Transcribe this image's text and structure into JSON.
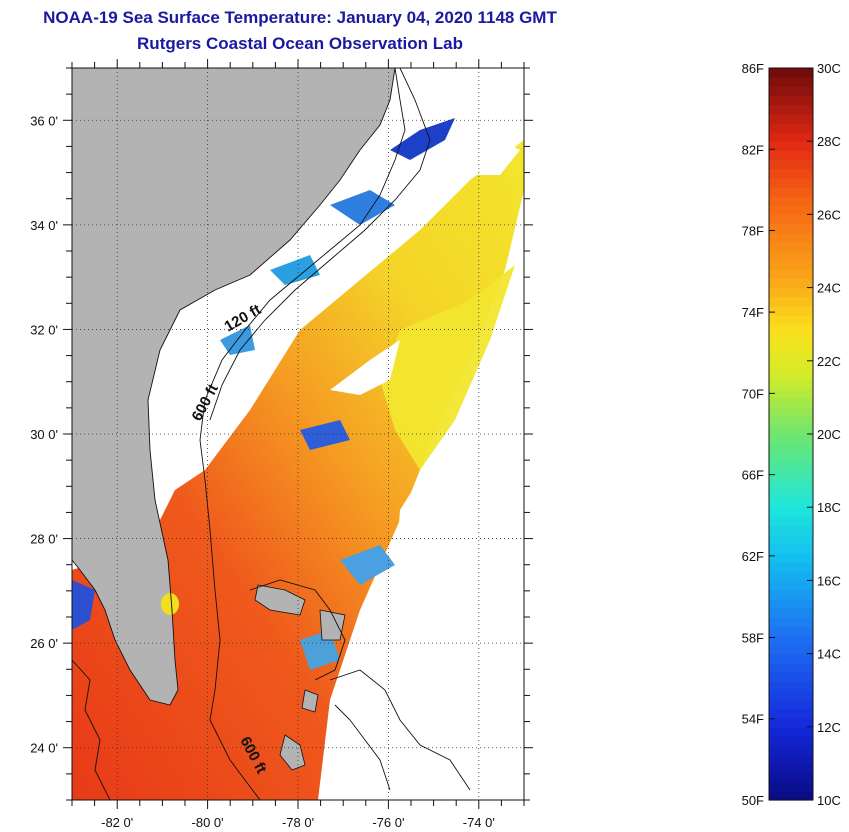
{
  "header": {
    "title": "NOAA-19 Sea Surface Temperature:  January 04, 2020 1148 GMT",
    "subtitle": "Rutgers Coastal Ocean Observation Lab"
  },
  "map": {
    "region": "US Southeast Atlantic coast (Florida to North Carolina)",
    "lon_range": [
      -83,
      -73
    ],
    "lat_range": [
      23,
      37
    ],
    "lon_ticks": [
      {
        "value": -82,
        "label": "-82 0'"
      },
      {
        "value": -80,
        "label": "-80 0'"
      },
      {
        "value": -78,
        "label": "-78 0'"
      },
      {
        "value": -76,
        "label": "-76 0'"
      },
      {
        "value": -74,
        "label": "-74 0'"
      }
    ],
    "lat_ticks": [
      {
        "value": 36,
        "label": "36 0'"
      },
      {
        "value": 34,
        "label": "34 0'"
      },
      {
        "value": 32,
        "label": "32 0'"
      },
      {
        "value": 30,
        "label": "30 0'"
      },
      {
        "value": 28,
        "label": "28 0'"
      },
      {
        "value": 26,
        "label": "26 0'"
      },
      {
        "value": 24,
        "label": "24 0'"
      }
    ],
    "grid": true,
    "contour_labels": [
      {
        "text": "120 ft",
        "rotate": -30
      },
      {
        "text": "600 ft",
        "rotate": -62
      },
      {
        "text": "600 ft",
        "rotate": 62
      }
    ],
    "colors": {
      "land": "#b3b3b3",
      "cloud": "#ffffff",
      "warm": "#e8431a",
      "mid": "#f6e22a",
      "cool": "#1848d8"
    }
  },
  "colorbar": {
    "min_c": 10,
    "max_c": 30,
    "fahrenheit_labels": [
      {
        "value_c": 30,
        "label": "86F"
      },
      {
        "value_c": 27.78,
        "label": "82F"
      },
      {
        "value_c": 25.56,
        "label": "78F"
      },
      {
        "value_c": 23.33,
        "label": "74F"
      },
      {
        "value_c": 21.11,
        "label": "70F"
      },
      {
        "value_c": 18.89,
        "label": "66F"
      },
      {
        "value_c": 16.67,
        "label": "62F"
      },
      {
        "value_c": 14.44,
        "label": "58F"
      },
      {
        "value_c": 12.22,
        "label": "54F"
      },
      {
        "value_c": 10,
        "label": "50F"
      }
    ],
    "celsius_labels": [
      {
        "value_c": 30,
        "label": "30C"
      },
      {
        "value_c": 28,
        "label": "28C"
      },
      {
        "value_c": 26,
        "label": "26C"
      },
      {
        "value_c": 24,
        "label": "24C"
      },
      {
        "value_c": 22,
        "label": "22C"
      },
      {
        "value_c": 20,
        "label": "20C"
      },
      {
        "value_c": 18,
        "label": "18C"
      },
      {
        "value_c": 16,
        "label": "16C"
      },
      {
        "value_c": 14,
        "label": "14C"
      },
      {
        "value_c": 12,
        "label": "12C"
      },
      {
        "value_c": 10,
        "label": "10C"
      }
    ]
  }
}
